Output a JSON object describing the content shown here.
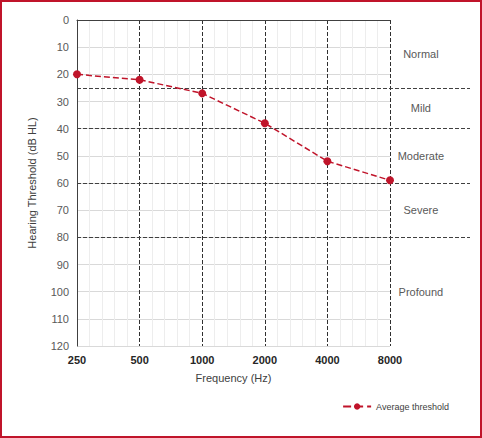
{
  "chart_data": {
    "type": "line",
    "x_label": "Frequency (Hz)",
    "y_label": "Hearing Threshold (dB HL)",
    "categories": [
      "250",
      "500",
      "1000",
      "2000",
      "4000",
      "8000"
    ],
    "series": [
      {
        "name": "Average threshold",
        "color": "#c0142a",
        "values": [
          20,
          22,
          27,
          38,
          52,
          59
        ],
        "marker": "circle",
        "line_style": "dashed"
      }
    ],
    "ylim": [
      120,
      0
    ],
    "yticks": [
      0,
      10,
      20,
      30,
      40,
      50,
      60,
      70,
      80,
      90,
      100,
      110,
      120
    ],
    "bands": [
      {
        "label": "Normal",
        "from": 0,
        "to": 25
      },
      {
        "label": "Mild",
        "from": 25,
        "to": 40
      },
      {
        "label": "Moderate",
        "from": 40,
        "to": 60
      },
      {
        "label": "Severe",
        "from": 60,
        "to": 80
      },
      {
        "label": "Profound",
        "from": 80,
        "to": 120
      }
    ],
    "grid": true,
    "legend": "lower right"
  }
}
